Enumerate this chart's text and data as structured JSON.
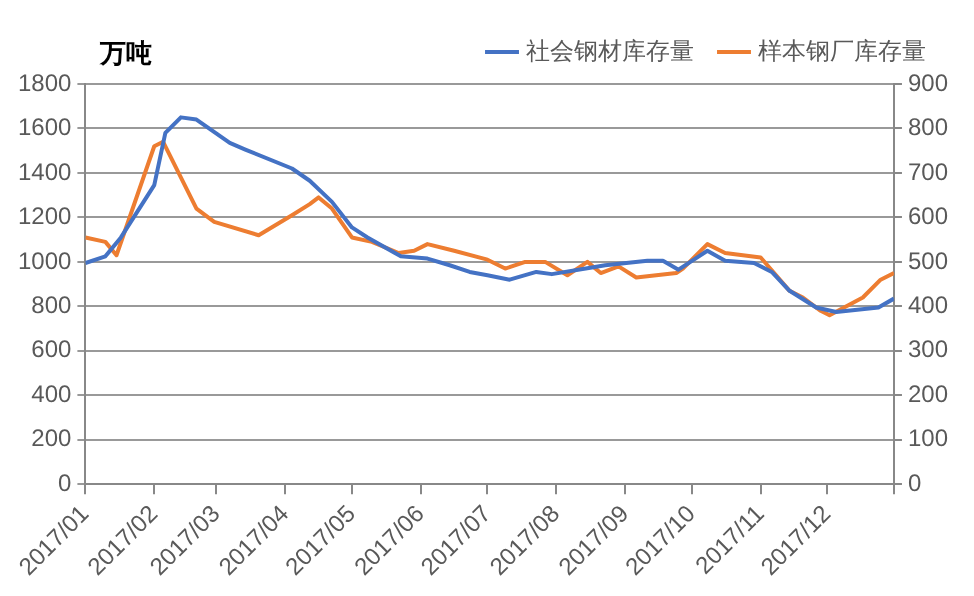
{
  "chart_data": {
    "type": "line",
    "ylabel": "万吨",
    "legend": "top",
    "grid": "y",
    "marker": "none",
    "line_style": "solid",
    "xlim": [
      "2017-01-01",
      "2017-12-31"
    ],
    "xticks": [
      {
        "value": "2017-01-01",
        "label": "2017/01"
      },
      {
        "value": "2017-02-01",
        "label": "2017/02"
      },
      {
        "value": "2017-03-01",
        "label": "2017/03"
      },
      {
        "value": "2017-04-01",
        "label": "2017/04"
      },
      {
        "value": "2017-05-01",
        "label": "2017/05"
      },
      {
        "value": "2017-06-01",
        "label": "2017/06"
      },
      {
        "value": "2017-07-01",
        "label": "2017/07"
      },
      {
        "value": "2017-08-01",
        "label": "2017/08"
      },
      {
        "value": "2017-09-01",
        "label": "2017/09"
      },
      {
        "value": "2017-10-01",
        "label": "2017/10"
      },
      {
        "value": "2017-11-01",
        "label": "2017/11"
      },
      {
        "value": "2017-12-01",
        "label": "2017/12"
      },
      {
        "value": "2017-12-31",
        "label": null
      }
    ],
    "ylim": [
      0,
      1800
    ],
    "yticks": [
      0,
      200,
      400,
      600,
      800,
      1000,
      1200,
      1400,
      1600,
      1800
    ],
    "y2lim": [
      0,
      900
    ],
    "y2ticks": [
      0,
      100,
      200,
      300,
      400,
      500,
      600,
      700,
      800,
      900
    ],
    "series": [
      {
        "name": "社会钢材库存量",
        "color": "#4472c4",
        "axis": "y",
        "x": [
          "2017-01-01",
          "2017-01-10",
          "2017-01-17",
          "2017-02-01",
          "2017-02-06",
          "2017-02-13",
          "2017-02-20",
          "2017-03-07",
          "2017-03-14",
          "2017-04-04",
          "2017-04-12",
          "2017-04-22",
          "2017-05-01",
          "2017-05-08",
          "2017-05-23",
          "2017-06-04",
          "2017-06-14",
          "2017-06-23",
          "2017-07-01",
          "2017-07-11",
          "2017-07-23",
          "2017-07-30",
          "2017-08-17",
          "2017-08-23",
          "2017-09-11",
          "2017-09-18",
          "2017-09-25",
          "2017-10-08",
          "2017-10-16",
          "2017-10-29",
          "2017-11-06",
          "2017-11-14",
          "2017-11-26",
          "2017-12-05",
          "2017-12-24",
          "2017-12-31"
        ],
        "values": [
          995,
          1025,
          1110,
          1345,
          1580,
          1650,
          1640,
          1535,
          1505,
          1420,
          1365,
          1270,
          1155,
          1110,
          1025,
          1015,
          985,
          955,
          940,
          920,
          955,
          945,
          975,
          985,
          1005,
          1005,
          965,
          1050,
          1005,
          995,
          955,
          870,
          795,
          775,
          795,
          835
        ]
      },
      {
        "name": "样本钢厂库存量",
        "color": "#ed7d31",
        "axis": "y2",
        "x": [
          "2017-01-01",
          "2017-01-10",
          "2017-01-15",
          "2017-02-01",
          "2017-02-05",
          "2017-02-20",
          "2017-02-28",
          "2017-03-20",
          "2017-04-04",
          "2017-04-12",
          "2017-04-16",
          "2017-04-22",
          "2017-05-01",
          "2017-05-10",
          "2017-05-22",
          "2017-05-29",
          "2017-06-04",
          "2017-06-16",
          "2017-07-01",
          "2017-07-09",
          "2017-07-18",
          "2017-07-27",
          "2017-08-06",
          "2017-08-15",
          "2017-08-21",
          "2017-08-29",
          "2017-09-06",
          "2017-09-24",
          "2017-09-27",
          "2017-10-08",
          "2017-10-16",
          "2017-11-01",
          "2017-11-14",
          "2017-11-20",
          "2017-11-28",
          "2017-12-02",
          "2017-12-17",
          "2017-12-25",
          "2017-12-31"
        ],
        "values": [
          555,
          545,
          515,
          760,
          770,
          620,
          590,
          560,
          605,
          630,
          645,
          620,
          555,
          545,
          520,
          525,
          540,
          525,
          505,
          485,
          500,
          500,
          470,
          500,
          475,
          490,
          465,
          475,
          485,
          540,
          520,
          510,
          435,
          420,
          390,
          380,
          420,
          460,
          475
        ]
      }
    ]
  }
}
